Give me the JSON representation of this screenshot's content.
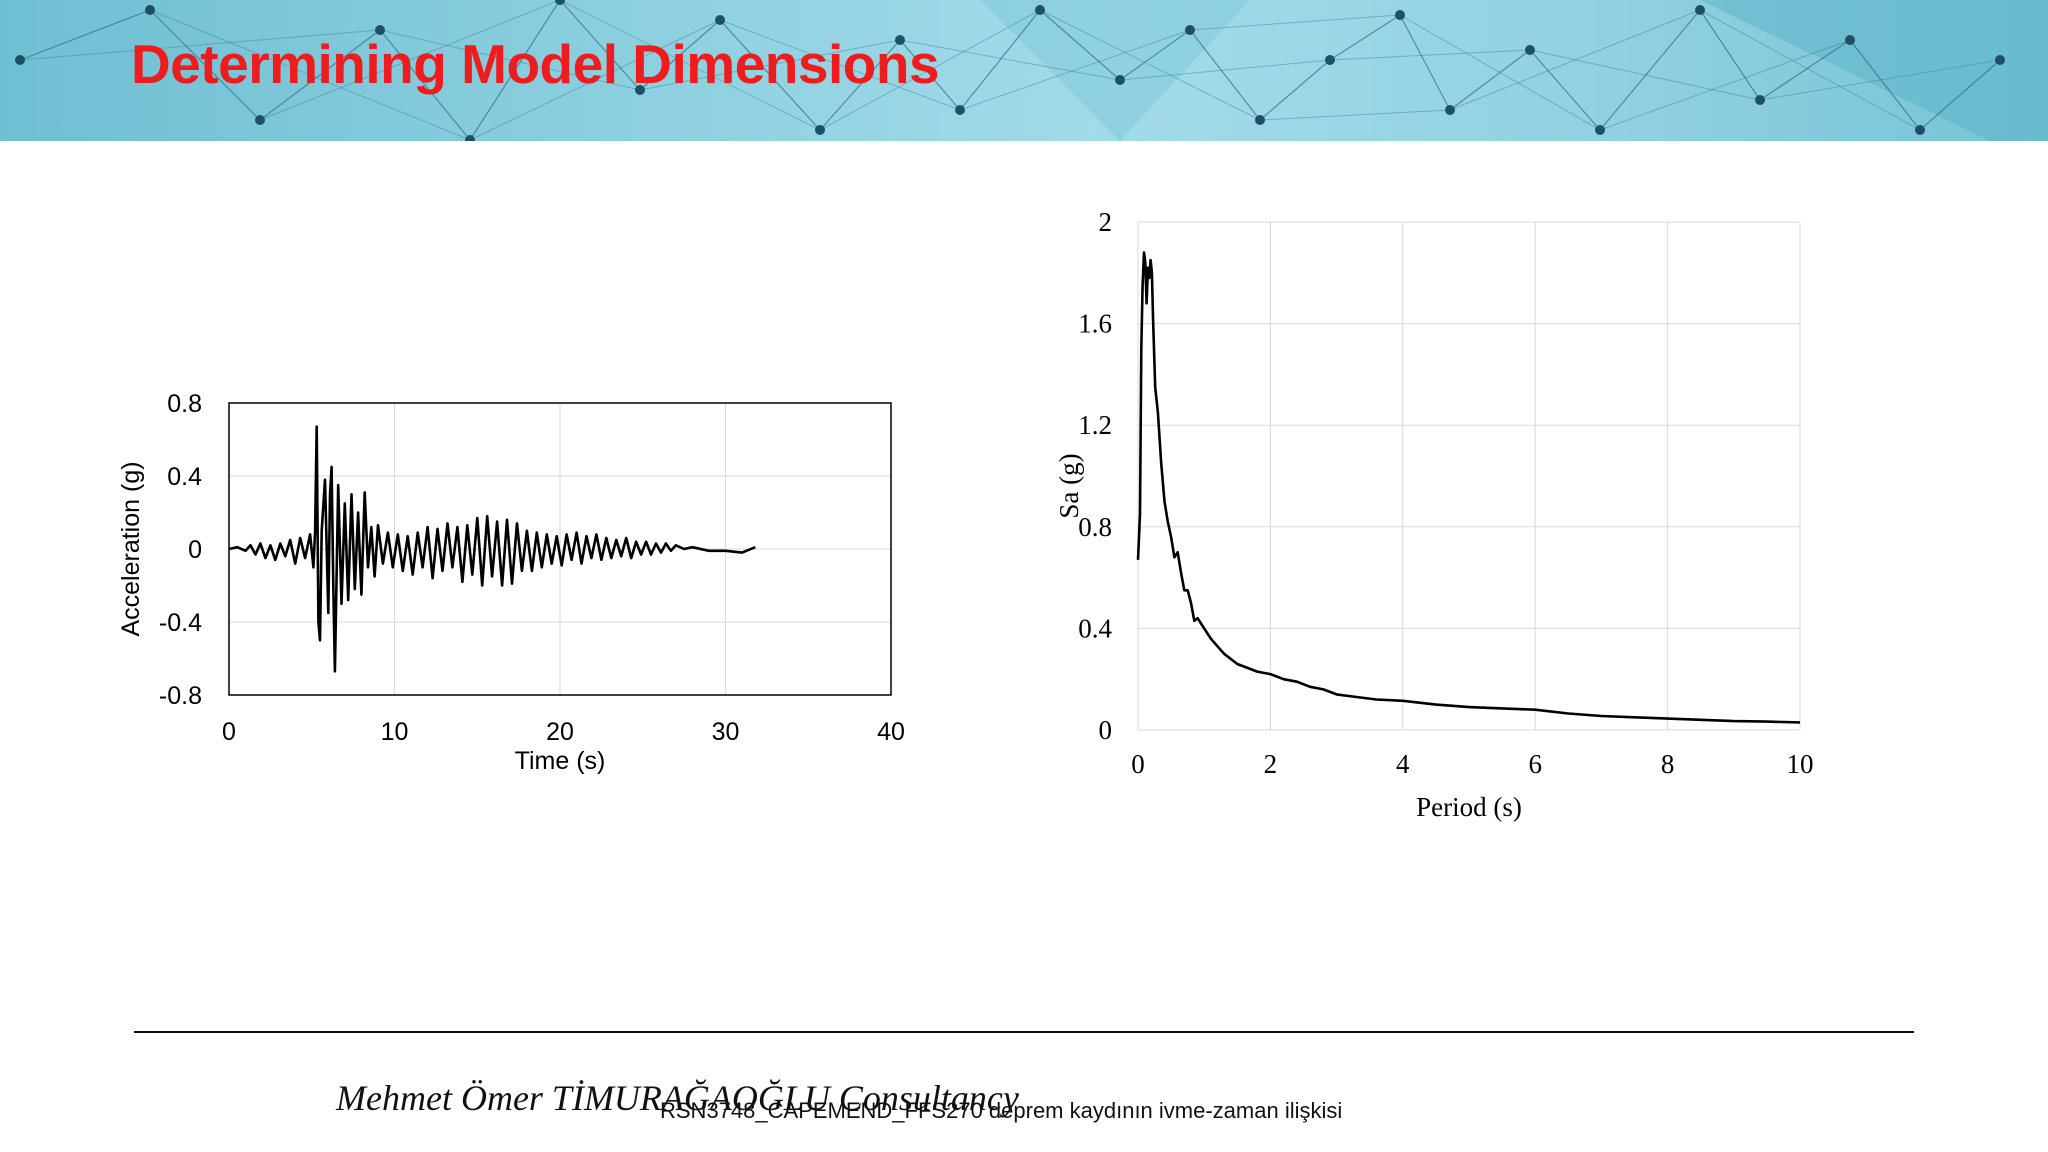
{
  "slide": {
    "title": "Determining Model Dimensions",
    "accent_color": "#ee1c1c",
    "banner_style": "network-triangles"
  },
  "footer": {
    "brand": "Mehmet Ömer TİMURAĞAOĞLU Consultancy",
    "caption": "RSN3748_CAPEMEND_FFS270 deprem kaydının ivme-zaman ilişkisi"
  },
  "chart_data": [
    {
      "type": "line",
      "title": "",
      "xlabel": "Time (s)",
      "ylabel": "Acceleration (g)",
      "xlim": [
        0,
        40
      ],
      "ylim": [
        -0.8,
        0.8
      ],
      "xticks": [
        "0",
        "10",
        "20",
        "30",
        "40"
      ],
      "yticks": [
        "-0.8",
        "-0.4",
        "0",
        "0.4",
        "0.8"
      ],
      "grid": true,
      "series": [
        {
          "x": [
            0,
            0.5,
            1.0,
            1.3,
            1.6,
            1.9,
            2.2,
            2.5,
            2.8,
            3.1,
            3.4,
            3.7,
            4.0,
            4.3,
            4.6,
            4.9,
            5.1,
            5.2,
            5.3,
            5.4,
            5.5,
            5.6,
            5.8,
            6.0,
            6.1,
            6.2,
            6.3,
            6.4,
            6.6,
            6.8,
            7.0,
            7.2,
            7.4,
            7.6,
            7.8,
            8.0,
            8.2,
            8.4,
            8.6,
            8.8,
            9.0,
            9.3,
            9.6,
            9.9,
            10.2,
            10.5,
            10.8,
            11.1,
            11.4,
            11.7,
            12.0,
            12.3,
            12.6,
            12.9,
            13.2,
            13.5,
            13.8,
            14.1,
            14.4,
            14.7,
            15.0,
            15.3,
            15.6,
            15.9,
            16.2,
            16.5,
            16.8,
            17.1,
            17.4,
            17.7,
            18.0,
            18.3,
            18.6,
            18.9,
            19.2,
            19.5,
            19.8,
            20.1,
            20.4,
            20.7,
            21.0,
            21.3,
            21.6,
            21.9,
            22.2,
            22.5,
            22.8,
            23.1,
            23.4,
            23.7,
            24.0,
            24.3,
            24.6,
            24.9,
            25.2,
            25.5,
            25.8,
            26.1,
            26.4,
            26.7,
            27.0,
            27.5,
            28.0,
            29.0,
            30.0,
            31.0,
            31.8
          ],
          "values": [
            0,
            0.01,
            -0.01,
            0.02,
            -0.03,
            0.03,
            -0.05,
            0.02,
            -0.06,
            0.03,
            -0.04,
            0.05,
            -0.08,
            0.06,
            -0.05,
            0.08,
            -0.1,
            0.1,
            0.67,
            -0.4,
            -0.5,
            0.1,
            0.38,
            -0.35,
            0.3,
            0.45,
            -0.2,
            -0.67,
            0.35,
            -0.3,
            0.25,
            -0.28,
            0.3,
            -0.22,
            0.2,
            -0.25,
            0.31,
            -0.1,
            0.12,
            -0.15,
            0.13,
            -0.08,
            0.09,
            -0.1,
            0.08,
            -0.12,
            0.07,
            -0.14,
            0.09,
            -0.1,
            0.12,
            -0.16,
            0.11,
            -0.12,
            0.14,
            -0.1,
            0.12,
            -0.18,
            0.13,
            -0.14,
            0.17,
            -0.2,
            0.18,
            -0.15,
            0.15,
            -0.2,
            0.16,
            -0.19,
            0.14,
            -0.12,
            0.1,
            -0.12,
            0.09,
            -0.1,
            0.08,
            -0.08,
            0.07,
            -0.09,
            0.08,
            -0.06,
            0.09,
            -0.08,
            0.07,
            -0.05,
            0.08,
            -0.06,
            0.06,
            -0.05,
            0.05,
            -0.04,
            0.06,
            -0.05,
            0.04,
            -0.03,
            0.04,
            -0.03,
            0.03,
            -0.02,
            0.03,
            -0.01,
            0.02,
            0,
            0.01,
            -0.01,
            -0.01,
            -0.02,
            0.01
          ]
        }
      ]
    },
    {
      "type": "line",
      "title": "",
      "xlabel": "Period (s)",
      "ylabel": "Sa (g)",
      "xlim": [
        0,
        10
      ],
      "ylim": [
        0,
        2
      ],
      "xticks": [
        "0",
        "2",
        "4",
        "6",
        "8",
        "10"
      ],
      "yticks": [
        "0",
        "0.4",
        "0.8",
        "1.2",
        "1.6",
        "2"
      ],
      "grid": true,
      "series": [
        {
          "x": [
            0.0,
            0.03,
            0.05,
            0.07,
            0.09,
            0.11,
            0.13,
            0.15,
            0.17,
            0.19,
            0.21,
            0.23,
            0.26,
            0.3,
            0.35,
            0.4,
            0.45,
            0.5,
            0.55,
            0.6,
            0.65,
            0.7,
            0.75,
            0.8,
            0.85,
            0.9,
            1.0,
            1.1,
            1.2,
            1.3,
            1.4,
            1.5,
            1.6,
            1.8,
            2.0,
            2.2,
            2.4,
            2.6,
            2.8,
            3.0,
            3.3,
            3.6,
            4.0,
            4.5,
            5.0,
            5.5,
            6.0,
            6.5,
            7.0,
            7.5,
            8.0,
            8.5,
            9.0,
            9.5,
            10.0
          ],
          "values": [
            0.67,
            0.85,
            1.5,
            1.75,
            1.88,
            1.84,
            1.68,
            1.82,
            1.78,
            1.85,
            1.8,
            1.6,
            1.35,
            1.25,
            1.05,
            0.9,
            0.82,
            0.76,
            0.68,
            0.7,
            0.62,
            0.55,
            0.55,
            0.5,
            0.43,
            0.44,
            0.4,
            0.36,
            0.33,
            0.3,
            0.28,
            0.26,
            0.25,
            0.23,
            0.22,
            0.2,
            0.19,
            0.17,
            0.16,
            0.14,
            0.13,
            0.12,
            0.115,
            0.1,
            0.09,
            0.085,
            0.08,
            0.065,
            0.055,
            0.05,
            0.045,
            0.04,
            0.035,
            0.033,
            0.03
          ]
        }
      ]
    }
  ]
}
